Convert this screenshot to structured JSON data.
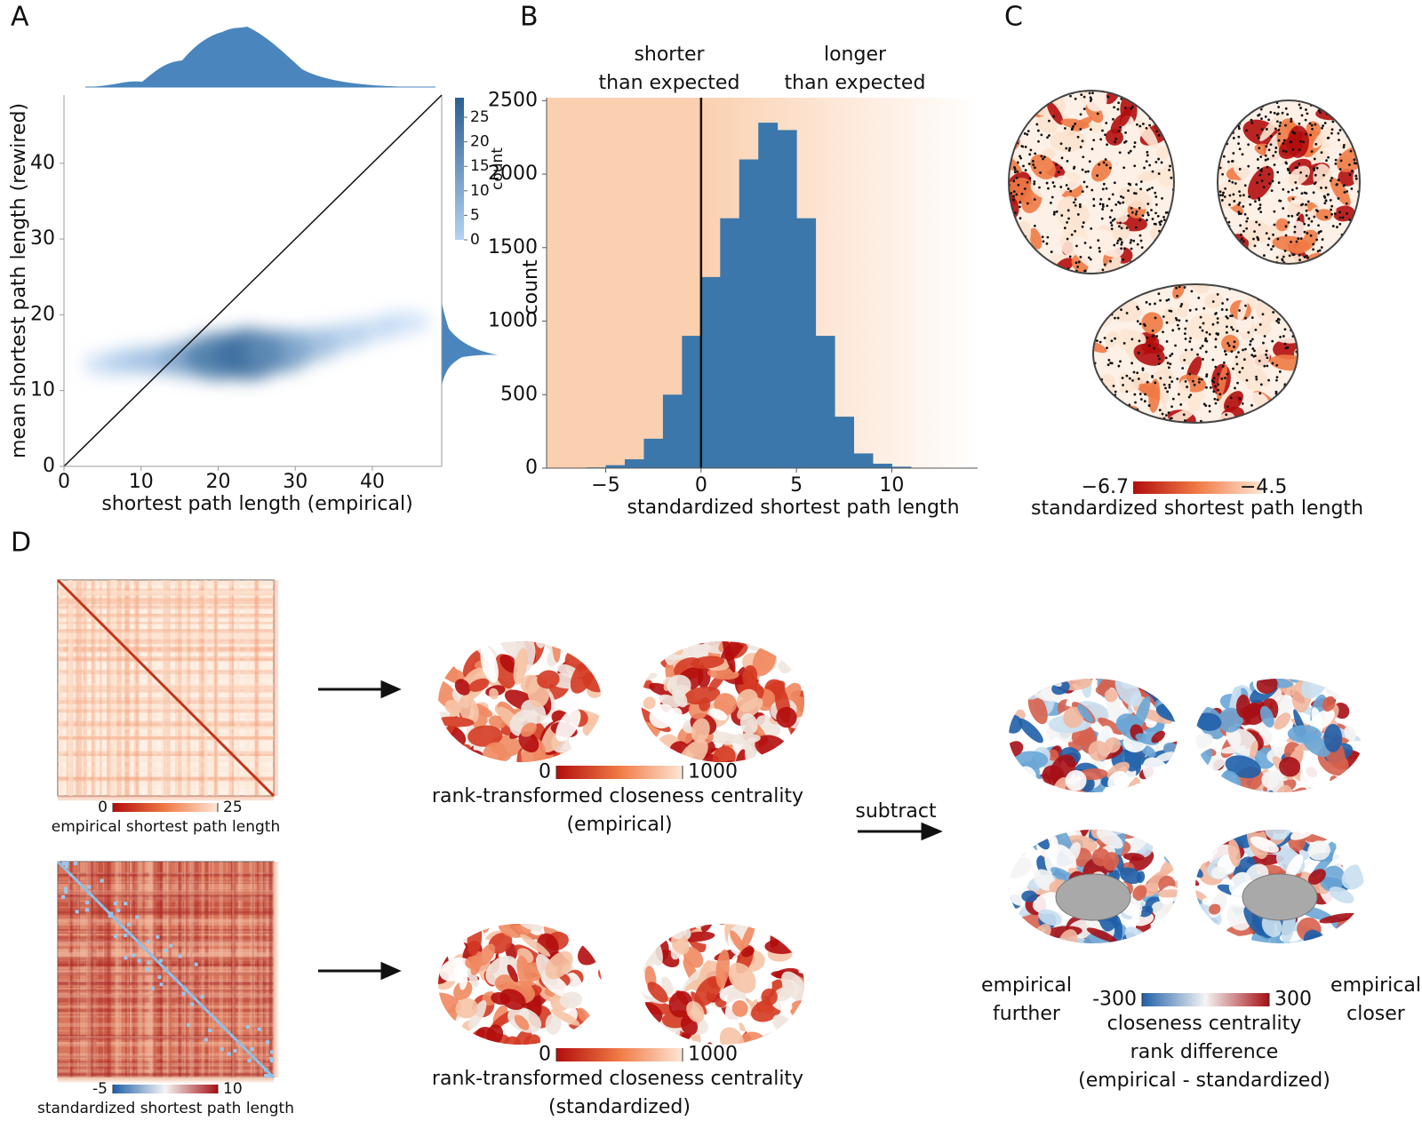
{
  "chart_data": [
    {
      "type": "density",
      "panel": "A",
      "xlabel": "shortest path length (empirical)",
      "ylabel": "mean shortest path length (rewired)",
      "x": [
        6,
        9,
        12,
        16,
        20,
        24,
        28,
        32,
        36,
        40,
        44
      ],
      "y": [
        13.5,
        14,
        14,
        14.2,
        14.5,
        14.8,
        15.2,
        16,
        17,
        18,
        19
      ],
      "values": [
        2,
        4,
        7,
        13,
        22,
        25,
        18,
        10,
        5,
        2,
        1
      ],
      "xlim": [
        0,
        49
      ],
      "ylim": [
        0,
        49
      ],
      "xticks": [
        0,
        10,
        20,
        30,
        40
      ],
      "yticks": [
        0,
        10,
        20,
        30,
        40
      ],
      "colorbar": {
        "label": "count",
        "lim": [
          0,
          29
        ],
        "ticks": [
          0,
          5,
          10,
          15,
          20,
          25
        ],
        "colors": [
          "#b3d2f3",
          "#2a5f92"
        ]
      }
    },
    {
      "type": "histogram",
      "panel": "B",
      "xlabel": "standardized shortest path length",
      "ylabel": "count",
      "bins": [
        -6,
        -5,
        -4,
        -3,
        -2,
        -1,
        0,
        1,
        2,
        3,
        4,
        5,
        6,
        7,
        8,
        9,
        10,
        11,
        12
      ],
      "values": [
        5,
        20,
        60,
        200,
        500,
        900,
        1300,
        1700,
        2100,
        2350,
        2300,
        1700,
        900,
        350,
        100,
        30,
        10,
        3
      ],
      "color": "#3b77aa",
      "vline": 0,
      "background_colors": [
        "#fbd0b0",
        "#ffffff"
      ],
      "xlim": [
        -8.1,
        14.5
      ],
      "ylim": [
        0,
        2520
      ],
      "xticks": [
        {
          "value": -5,
          "label": "−5"
        },
        0,
        5,
        10
      ],
      "yticks": [
        0,
        500,
        1000,
        1500,
        2000,
        2500
      ],
      "annotations": [
        [
          "shorter",
          "than expected"
        ],
        [
          "longer",
          "than expected"
        ]
      ]
    }
  ],
  "panels": {
    "A": "A",
    "B": "B",
    "C": {
      "label": "C",
      "colorbar": {
        "label": "standardized shortest path length",
        "lim": [
          -6.7,
          -4.5
        ],
        "ticks": [
          {
            "value": -6.7,
            "label": "−6.7"
          },
          {
            "value": -4.5,
            "label": "−4.5"
          }
        ],
        "colors": [
          "#b30d0d",
          "#f07a45",
          "#fde7d4"
        ]
      }
    },
    "D": {
      "label": "D",
      "matrices": [
        {
          "label": "empirical shortest path length",
          "ticks": [
            0,
            25
          ],
          "colors": [
            "#b30d0d",
            "#f07a45",
            "#fde7d4"
          ]
        },
        {
          "label": "standardized shortest path length",
          "ticks": [
            -5,
            10
          ],
          "colors": [
            "#1f5fa8",
            "#f4f4f4",
            "#a50f15"
          ]
        }
      ],
      "centrality": [
        {
          "ticks": [
            0,
            1000
          ],
          "title": "rank-transformed closeness centrality",
          "subtitle": "(empirical)",
          "colors": [
            "#b30d0d",
            "#f07a45",
            "#fde7d4"
          ]
        },
        {
          "ticks": [
            0,
            1000
          ],
          "title": "rank-transformed closeness centrality",
          "subtitle": "(standardized)",
          "colors": [
            "#b30d0d",
            "#f07a45",
            "#fde7d4"
          ]
        }
      ],
      "operation": "subtract",
      "difference": {
        "ticks": [
          -300,
          300
        ],
        "title": [
          "closeness centrality",
          "rank difference",
          "(empirical - standardized)"
        ],
        "left_label": [
          "empirical",
          "further"
        ],
        "right_label": [
          "empirical",
          "closer"
        ],
        "colors": [
          "#1f5fa8",
          "#f4f4f4",
          "#a50f15"
        ]
      }
    }
  }
}
